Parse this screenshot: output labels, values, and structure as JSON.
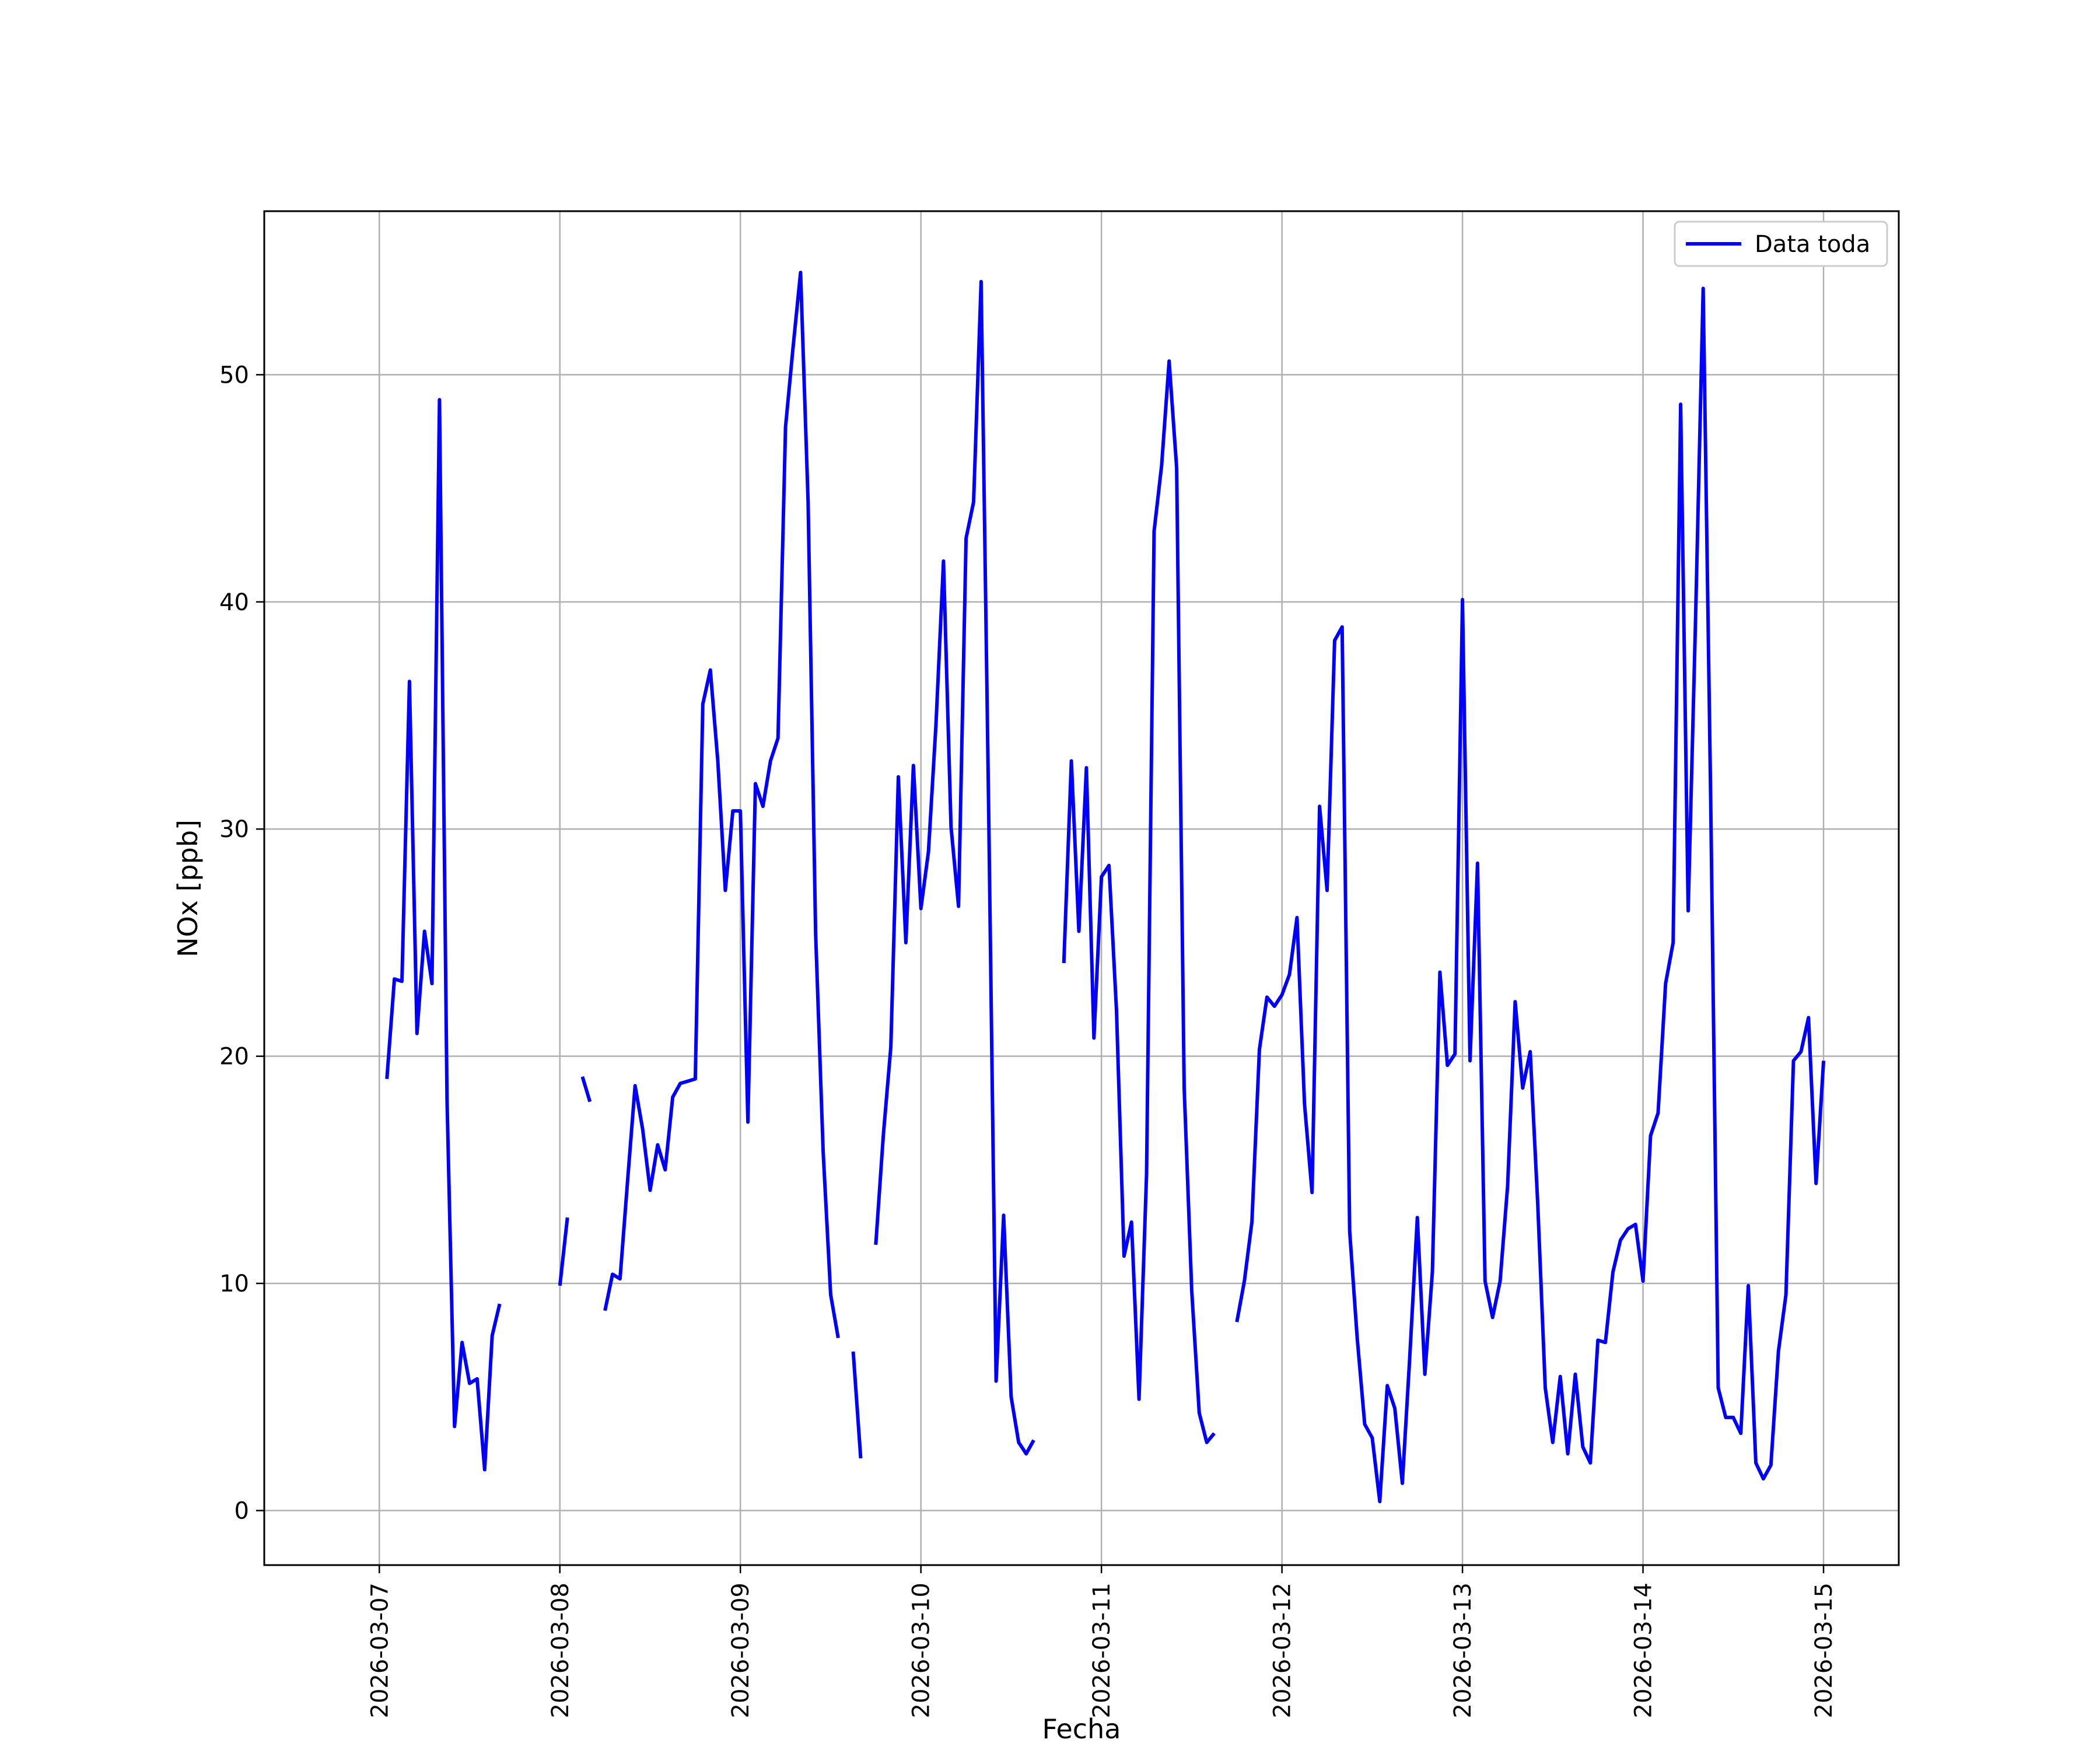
{
  "chart_data": {
    "type": "line",
    "title": "",
    "xlabel": "Fecha",
    "ylabel": "NOx [ppb]",
    "x_ticks": [
      "2026-03-07",
      "2026-03-08",
      "2026-03-09",
      "2026-03-10",
      "2026-03-11",
      "2026-03-12",
      "2026-03-13",
      "2026-03-14",
      "2026-03-15"
    ],
    "y_ticks": [
      0,
      10,
      20,
      30,
      40,
      50
    ],
    "xlim": [
      "2026-03-06 08:42",
      "2026-03-15 10:00"
    ],
    "ylim": [
      -2.4,
      57.2
    ],
    "grid": true,
    "legend_position": "top-right",
    "x_step_hours": 1,
    "series": [
      {
        "name": "Data toda",
        "color": "#0000ff",
        "segments": [
          {
            "start": "2026-03-07 01:00",
            "values": [
              19.0,
              23.4,
              23.3,
              36.5,
              21.0,
              25.5,
              23.2,
              48.9,
              18.1,
              3.7,
              7.4,
              5.6,
              5.8,
              1.8,
              7.7,
              9.1
            ]
          },
          {
            "start": "2026-03-08 00:00",
            "values": [
              9.9,
              12.9
            ]
          },
          {
            "start": "2026-03-08 03:00",
            "values": [
              19.1,
              18.0
            ]
          },
          {
            "start": "2026-03-08 06:00",
            "values": [
              8.8,
              10.4,
              10.2,
              14.5,
              18.7,
              16.8,
              14.1,
              16.1,
              15.0,
              18.2,
              18.8,
              18.9,
              19.0,
              35.5,
              37.0,
              33.0,
              27.3,
              30.8,
              30.8,
              17.1,
              32.0,
              31.0,
              33.0,
              34.0,
              47.7,
              51.2,
              54.5,
              44.4,
              25.4,
              15.8,
              9.5,
              7.6
            ]
          },
          {
            "start": "2026-03-09 15:00",
            "values": [
              7.0,
              2.3
            ]
          },
          {
            "start": "2026-03-09 18:00",
            "values": [
              11.7,
              16.5,
              20.4,
              32.3,
              25.0,
              32.8,
              26.5,
              29.0,
              34.6,
              41.8,
              30.1,
              26.6,
              42.8,
              44.4,
              54.1,
              30.9,
              5.7,
              13.0,
              5.0,
              3.0,
              2.5,
              3.1
            ]
          },
          {
            "start": "2026-03-10 19:00",
            "values": [
              24.1,
              33.0,
              25.5,
              32.7,
              20.8,
              27.9,
              28.4,
              22.0,
              11.2,
              12.7,
              4.9,
              14.8,
              43.1,
              46.0,
              50.6,
              45.9,
              18.6,
              9.7,
              4.3,
              3.0,
              3.4
            ]
          },
          {
            "start": "2026-03-11 18:00",
            "values": [
              8.3,
              10.1,
              12.7,
              20.3,
              22.6,
              22.2,
              22.7,
              23.6,
              26.1,
              17.9,
              14.0,
              31.0,
              27.3,
              38.3,
              38.9,
              12.3,
              7.6,
              3.8,
              3.2,
              0.4,
              5.5,
              4.5,
              1.2,
              6.8,
              12.9,
              6.0,
              10.5,
              23.7,
              19.6,
              20.1,
              40.1,
              19.8,
              28.5,
              10.1,
              8.5,
              10.1,
              14.3,
              22.4,
              18.6,
              20.2,
              13.5,
              5.4,
              3.0,
              5.9,
              2.5,
              6.0,
              2.8,
              2.1,
              7.5,
              7.4,
              10.5,
              11.9,
              12.4,
              12.6,
              10.1,
              16.5,
              17.5,
              23.2,
              25.0,
              48.7,
              26.4,
              39.4,
              53.8,
              31.3,
              5.4,
              4.1,
              4.1,
              3.4,
              9.9,
              2.1,
              1.4,
              2.0,
              7.0,
              9.5,
              19.8,
              20.2,
              21.7,
              14.4,
              19.8
            ]
          }
        ]
      }
    ]
  }
}
